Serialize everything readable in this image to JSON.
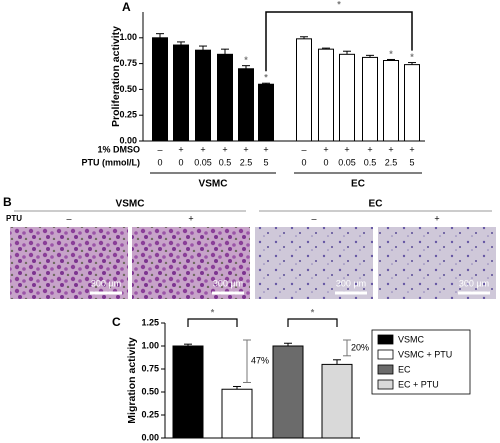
{
  "chart_data": [
    {
      "type": "bar",
      "panel": "A",
      "ylabel": "Proliferation activity",
      "ylim": [
        0,
        1.25
      ],
      "yticks": [
        {
          "value": 0,
          "label": "0.00"
        },
        {
          "value": 0.25,
          "label": "0.25"
        },
        {
          "value": 0.5,
          "label": "0.50"
        },
        {
          "value": 0.75,
          "label": "0.75"
        },
        {
          "value": 1,
          "label": "1.00"
        }
      ],
      "row_labels": [
        "1% DMSO",
        "PTU (mmol/L)"
      ],
      "series": [
        {
          "name": "VSMC",
          "color": "#000000",
          "values": [
            1.0,
            0.93,
            0.88,
            0.84,
            0.7,
            0.55
          ],
          "errors": [
            0.04,
            0.03,
            0.04,
            0.05,
            0.03,
            0.01
          ],
          "dmso": [
            "–",
            "+",
            "+",
            "+",
            "+",
            "+"
          ],
          "ptu": [
            "0",
            "0",
            "0.05",
            "0.5",
            "2.5",
            "5"
          ]
        },
        {
          "name": "EC",
          "color": "#ffffff",
          "values": [
            0.99,
            0.89,
            0.84,
            0.81,
            0.78,
            0.74
          ],
          "errors": [
            0.02,
            0.01,
            0.03,
            0.02,
            0.01,
            0.02
          ],
          "dmso": [
            "–",
            "+",
            "+",
            "+",
            "+",
            "+"
          ],
          "ptu": [
            "0",
            "0",
            "0.05",
            "0.5",
            "2.5",
            "5"
          ]
        }
      ],
      "annotations": [
        {
          "series": 0,
          "index": 4,
          "text": "*"
        },
        {
          "series": 0,
          "index": 5,
          "text": "*"
        },
        {
          "series": 1,
          "index": 4,
          "text": "*"
        },
        {
          "series": 1,
          "index": 5,
          "text": "*"
        }
      ],
      "bracket": {
        "text": "*",
        "from": [
          0,
          5
        ],
        "to": [
          1,
          5
        ]
      }
    },
    {
      "type": "bar",
      "panel": "C",
      "ylabel": "Migration activity",
      "ylim": [
        0,
        1.25
      ],
      "yticks": [
        {
          "value": 0,
          "label": "0.00"
        },
        {
          "value": 0.25,
          "label": "0.25"
        },
        {
          "value": 0.5,
          "label": "0.50"
        },
        {
          "value": 0.75,
          "label": "0.75"
        },
        {
          "value": 1,
          "label": "1.00"
        },
        {
          "value": 1.25,
          "label": "1.25"
        }
      ],
      "series": [
        {
          "name": "VSMC",
          "color": "#000000",
          "values": [
            1.0
          ],
          "errors": [
            0.02
          ]
        },
        {
          "name": "VSMC + PTU",
          "color": "#ffffff",
          "values": [
            0.53
          ],
          "errors": [
            0.03
          ]
        },
        {
          "name": "EC",
          "color": "#6b6b6b",
          "values": [
            1.0
          ],
          "errors": [
            0.03
          ]
        },
        {
          "name": "EC + PTU",
          "color": "#d9d9d9",
          "values": [
            0.8
          ],
          "errors": [
            0.05
          ]
        }
      ],
      "comparisons": [
        {
          "text": "*",
          "bars": [
            0,
            1
          ]
        },
        {
          "text": "*",
          "bars": [
            2,
            3
          ]
        }
      ],
      "reductions": [
        {
          "text": "47%",
          "bar": 1
        },
        {
          "text": "20%",
          "bar": 3
        }
      ]
    }
  ],
  "panel_b": {
    "label": "B",
    "row_label": "PTU",
    "scale_bar": "300 µm",
    "groups": [
      {
        "name": "VSMC",
        "columns": [
          "–",
          "+"
        ]
      },
      {
        "name": "EC",
        "columns": [
          "–",
          "+"
        ]
      }
    ]
  }
}
